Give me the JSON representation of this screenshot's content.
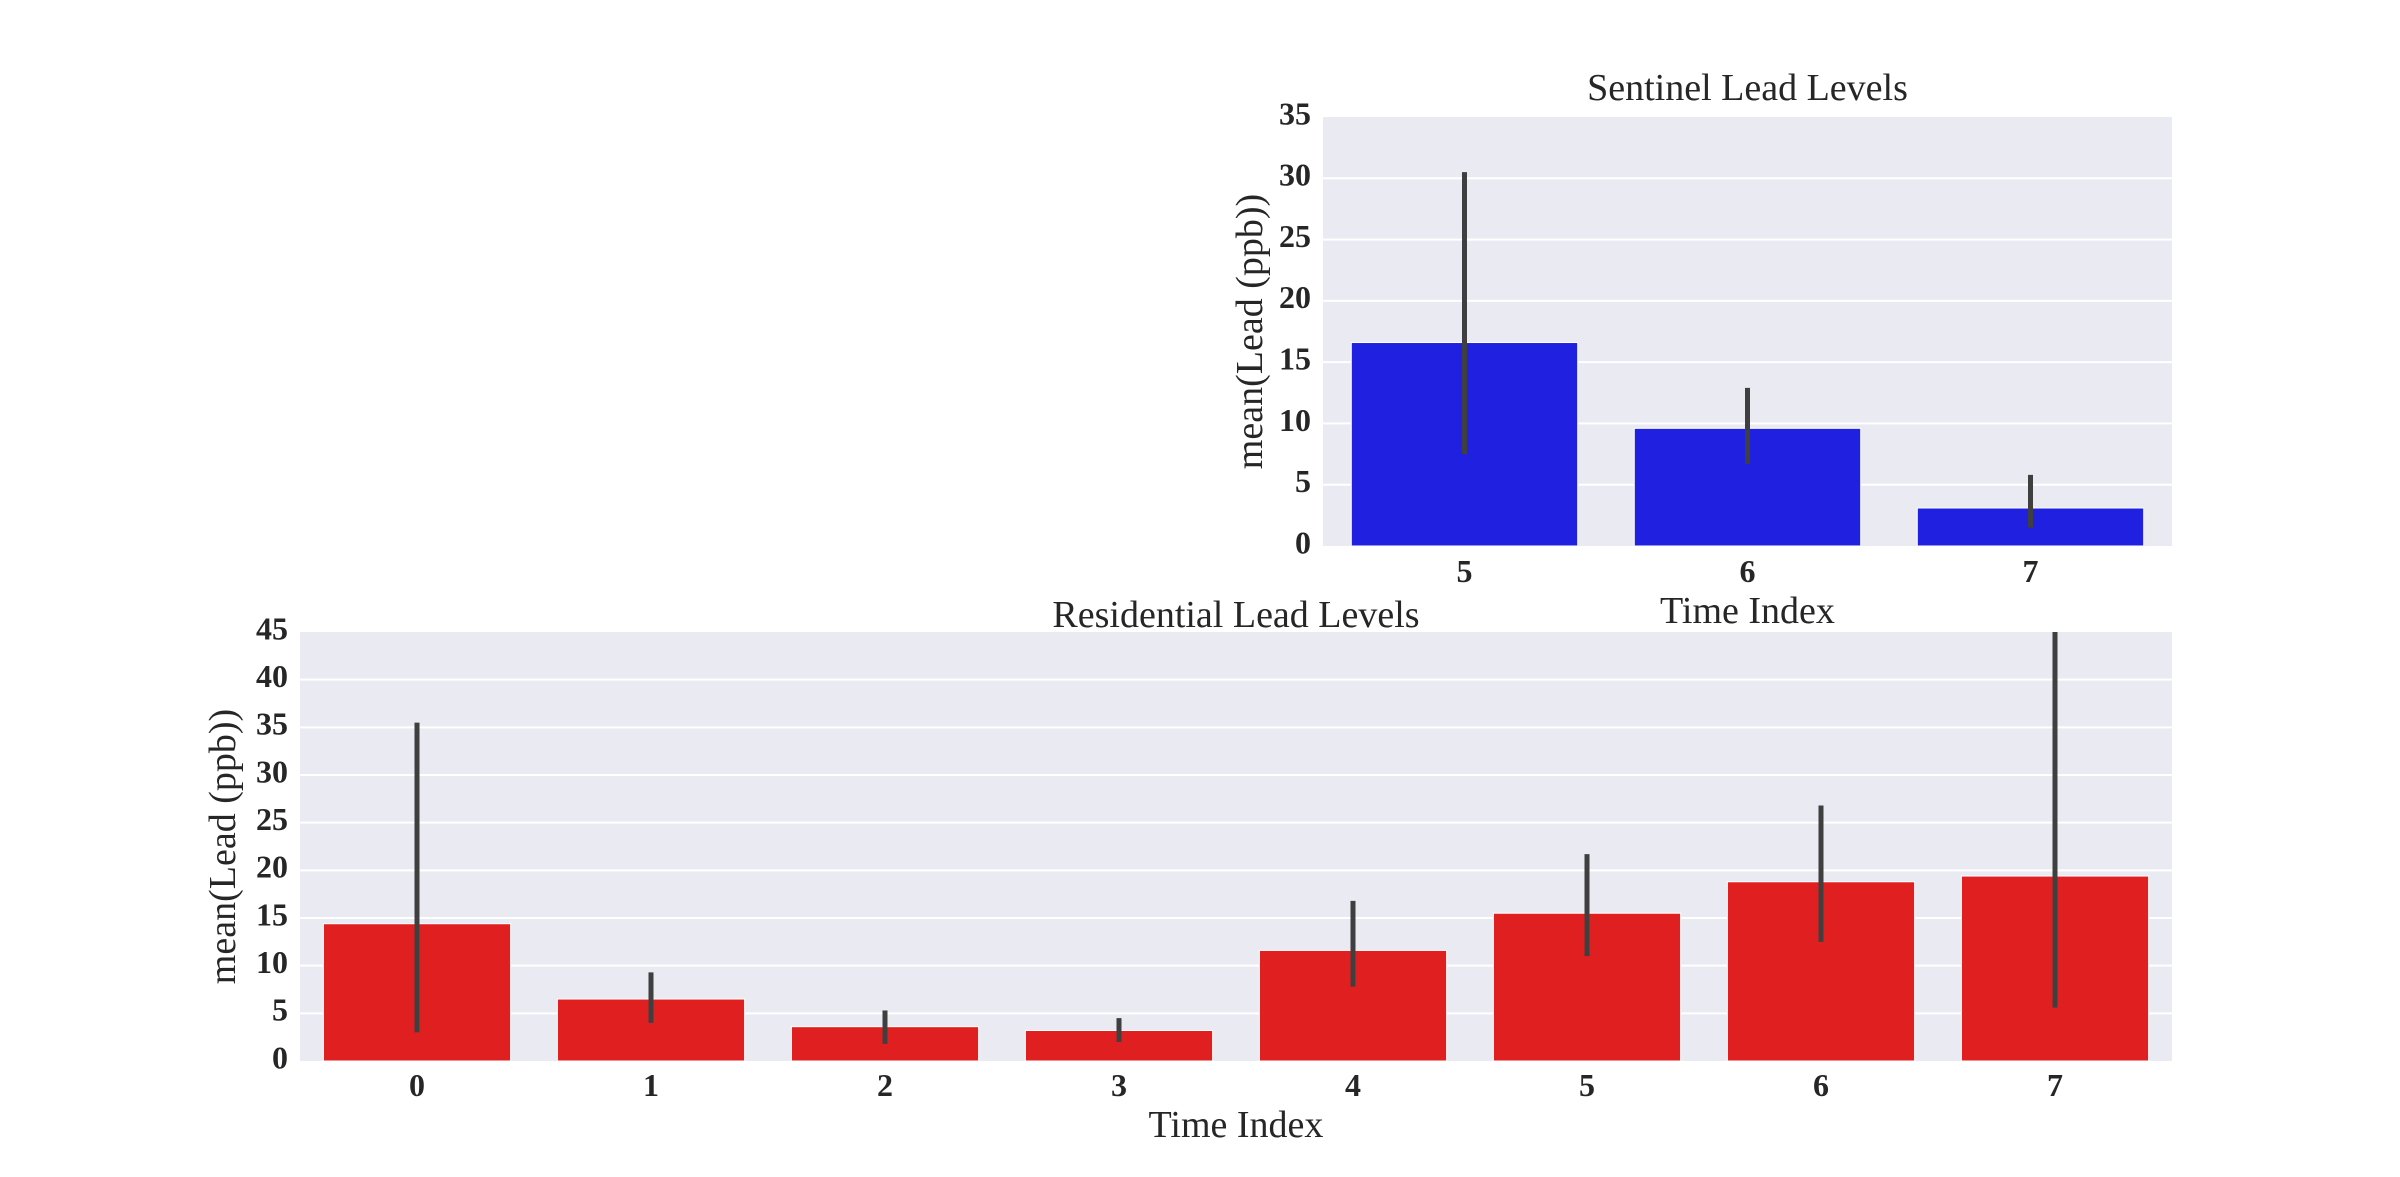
{
  "chart_data": [
    {
      "id": "sentinel",
      "type": "bar",
      "title": "Sentinel Lead Levels",
      "xlabel": "Time Index",
      "ylabel": "mean(Lead (ppb))",
      "categories": [
        "5",
        "6",
        "7"
      ],
      "values": [
        16.6,
        9.6,
        3.1
      ],
      "ci_low": [
        7.5,
        6.7,
        1.5
      ],
      "ci_high": [
        30.5,
        12.9,
        5.8
      ],
      "ylim": [
        0,
        35
      ],
      "yticks": [
        0,
        5,
        10,
        15,
        20,
        25,
        30,
        35
      ],
      "bar_color": "#2020e0",
      "grid": true
    },
    {
      "id": "residential",
      "type": "bar",
      "title": "Residential Lead Levels",
      "xlabel": "Time Index",
      "ylabel": "mean(Lead (ppb))",
      "categories": [
        "0",
        "1",
        "2",
        "3",
        "4",
        "5",
        "6",
        "7"
      ],
      "values": [
        14.4,
        6.5,
        3.6,
        3.2,
        11.6,
        15.5,
        18.8,
        19.4
      ],
      "ci_low": [
        3.0,
        4.0,
        1.8,
        2.0,
        7.8,
        11.0,
        12.5,
        5.6
      ],
      "ci_high": [
        35.5,
        9.3,
        5.3,
        4.5,
        16.8,
        21.7,
        26.8,
        45.0
      ],
      "ylim": [
        0,
        45
      ],
      "yticks": [
        0,
        5,
        10,
        15,
        20,
        25,
        30,
        35,
        40,
        45
      ],
      "bar_color": "#e02020",
      "grid": true
    }
  ]
}
